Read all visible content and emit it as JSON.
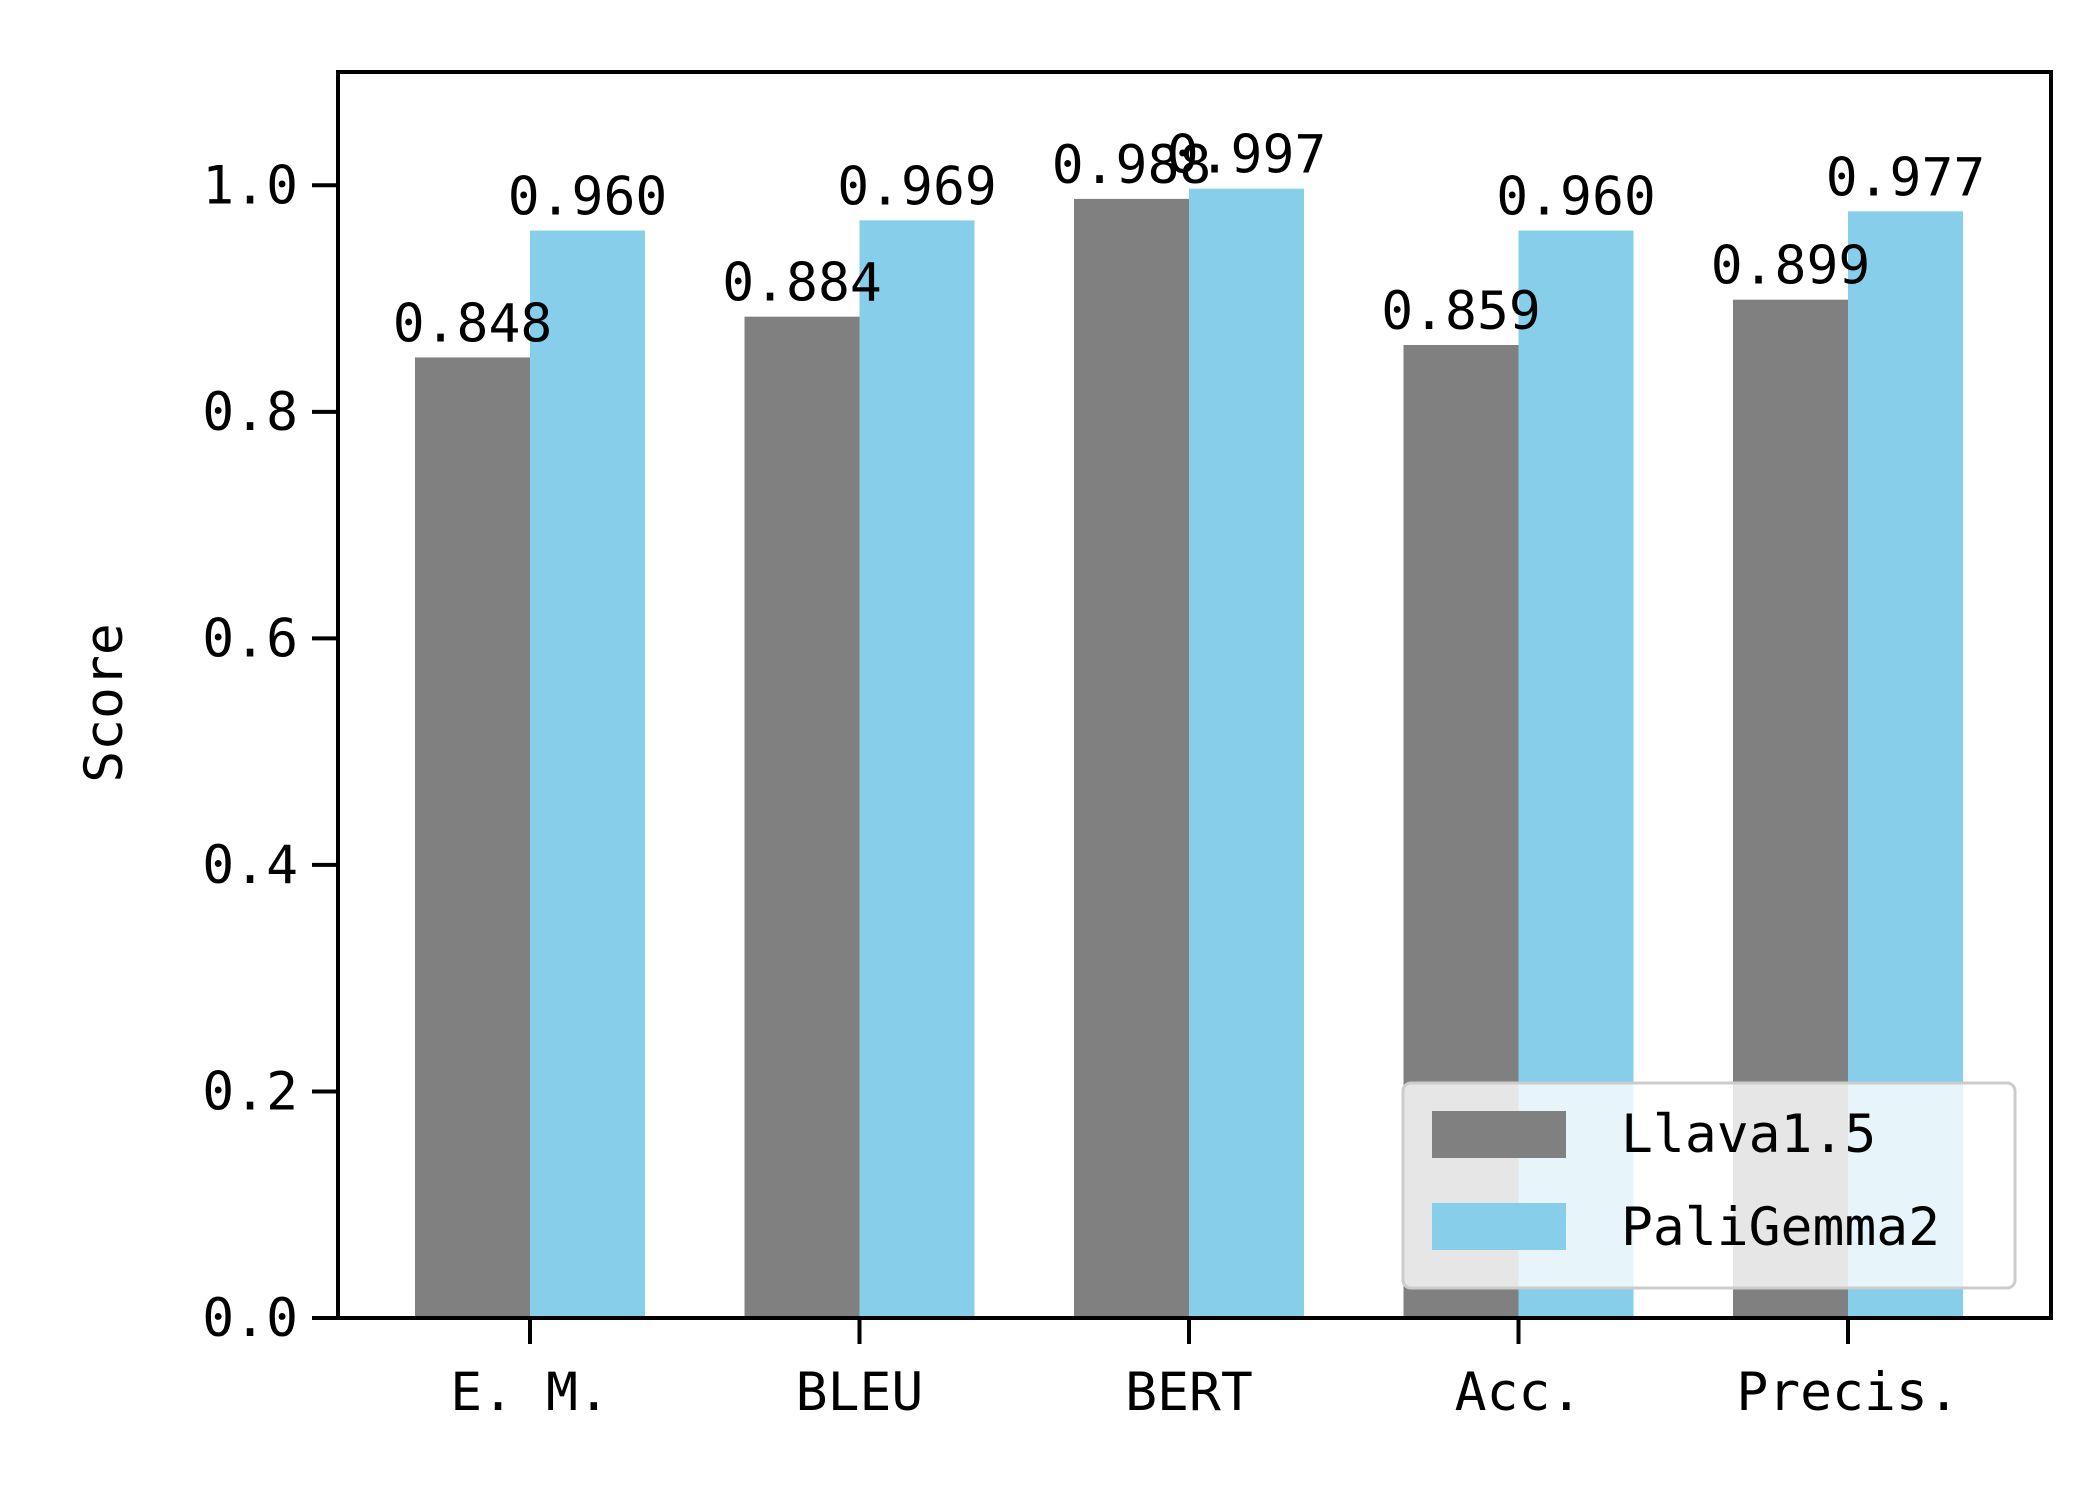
{
  "chart_data": {
    "type": "bar",
    "title": "",
    "xlabel": "",
    "ylabel": "Score",
    "categories": [
      "E. M.",
      "BLEU",
      "BERT",
      "Acc.",
      "Precis."
    ],
    "series": [
      {
        "name": "Llava1.5",
        "values": [
          0.848,
          0.884,
          0.988,
          0.859,
          0.899
        ],
        "labels": [
          "0.848",
          "0.884",
          "0.988",
          "0.859",
          "0.899"
        ],
        "color": "#808080"
      },
      {
        "name": "PaliGemma2",
        "values": [
          0.96,
          0.969,
          0.997,
          0.96,
          0.977
        ],
        "labels": [
          "0.960",
          "0.969",
          "0.997",
          "0.960",
          "0.977"
        ],
        "color": "#87ceeb"
      }
    ],
    "ylim": [
      0,
      1.1
    ],
    "yticks": [
      0.0,
      0.2,
      0.4,
      0.6,
      0.8,
      1.0
    ],
    "ytick_labels": [
      "0.0",
      "0.2",
      "0.4",
      "0.6",
      "0.8",
      "1.0"
    ],
    "grid": false,
    "legend_position": "lower-right"
  }
}
